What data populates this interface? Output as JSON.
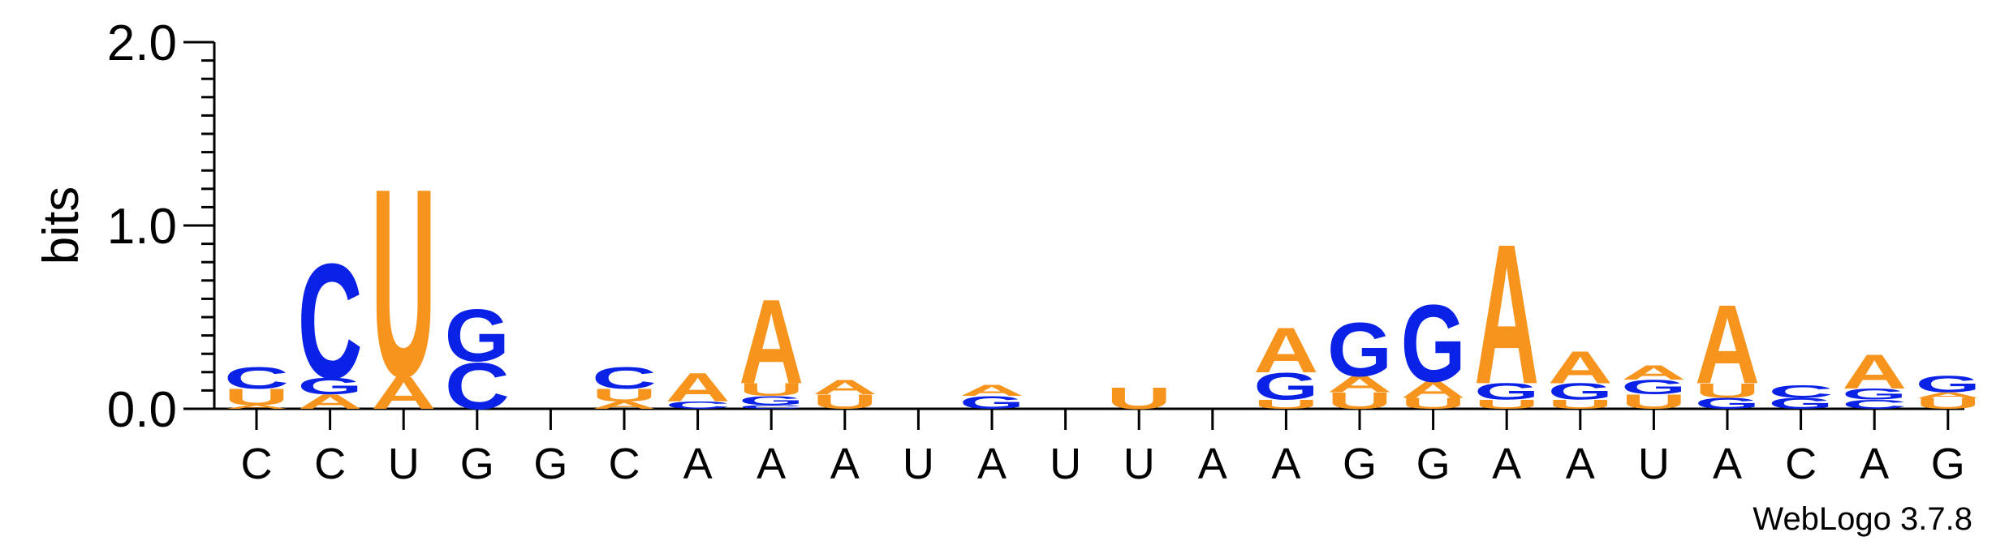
{
  "chart_data": {
    "type": "sequence-logo",
    "ylabel": "bits",
    "ylim": [
      0,
      2.0
    ],
    "yticks": [
      "0.0",
      "1.0",
      "2.0"
    ],
    "credit": "WebLogo 3.7.8",
    "colors": {
      "A": "#f7941d",
      "U": "#f7941d",
      "C": "#0a22e6",
      "G": "#0a22e6"
    },
    "positions": [
      {
        "consensus": "C",
        "stack": [
          {
            "base": "A",
            "bits": 0.02
          },
          {
            "base": "U",
            "bits": 0.09
          },
          {
            "base": "C",
            "bits": 0.12
          }
        ]
      },
      {
        "consensus": "C",
        "stack": [
          {
            "base": "A",
            "bits": 0.08
          },
          {
            "base": "G",
            "bits": 0.09
          },
          {
            "base": "C",
            "bits": 0.64
          }
        ]
      },
      {
        "consensus": "U",
        "stack": [
          {
            "base": "A",
            "bits": 0.18
          },
          {
            "base": "U",
            "bits": 1.05
          }
        ]
      },
      {
        "consensus": "G",
        "stack": [
          {
            "base": "C",
            "bits": 0.26
          },
          {
            "base": "G",
            "bits": 0.29
          }
        ]
      },
      {
        "consensus": "G",
        "stack": []
      },
      {
        "consensus": "C",
        "stack": [
          {
            "base": "A",
            "bits": 0.04
          },
          {
            "base": "U",
            "bits": 0.07
          },
          {
            "base": "C",
            "bits": 0.12
          }
        ]
      },
      {
        "consensus": "A",
        "stack": [
          {
            "base": "C",
            "bits": 0.04
          },
          {
            "base": "A",
            "bits": 0.16
          }
        ]
      },
      {
        "consensus": "A",
        "stack": [
          {
            "base": "C",
            "bits": 0.02
          },
          {
            "base": "G",
            "bits": 0.05
          },
          {
            "base": "U",
            "bits": 0.07
          },
          {
            "base": "A",
            "bits": 0.47
          }
        ]
      },
      {
        "consensus": "A",
        "stack": [
          {
            "base": "U",
            "bits": 0.08
          },
          {
            "base": "A",
            "bits": 0.08
          }
        ]
      },
      {
        "consensus": "U",
        "stack": []
      },
      {
        "consensus": "A",
        "stack": [
          {
            "base": "G",
            "bits": 0.07
          },
          {
            "base": "A",
            "bits": 0.06
          }
        ]
      },
      {
        "consensus": "U",
        "stack": []
      },
      {
        "consensus": "U",
        "stack": [
          {
            "base": "U",
            "bits": 0.12
          }
        ]
      },
      {
        "consensus": "A",
        "stack": []
      },
      {
        "consensus": "A",
        "stack": [
          {
            "base": "U",
            "bits": 0.05
          },
          {
            "base": "G",
            "bits": 0.15
          },
          {
            "base": "A",
            "bits": 0.25
          }
        ]
      },
      {
        "consensus": "G",
        "stack": [
          {
            "base": "U",
            "bits": 0.09
          },
          {
            "base": "A",
            "bits": 0.09
          },
          {
            "base": "G",
            "bits": 0.3
          }
        ]
      },
      {
        "consensus": "G",
        "stack": [
          {
            "base": "U",
            "bits": 0.06
          },
          {
            "base": "A",
            "bits": 0.09
          },
          {
            "base": "G",
            "bits": 0.43
          }
        ]
      },
      {
        "consensus": "A",
        "stack": [
          {
            "base": "U",
            "bits": 0.05
          },
          {
            "base": "G",
            "bits": 0.09
          },
          {
            "base": "A",
            "bits": 0.78
          }
        ]
      },
      {
        "consensus": "A",
        "stack": [
          {
            "base": "U",
            "bits": 0.05
          },
          {
            "base": "G",
            "bits": 0.09
          },
          {
            "base": "A",
            "bits": 0.18
          }
        ]
      },
      {
        "consensus": "U",
        "stack": [
          {
            "base": "U",
            "bits": 0.08
          },
          {
            "base": "G",
            "bits": 0.08
          },
          {
            "base": "A",
            "bits": 0.08
          }
        ]
      },
      {
        "consensus": "A",
        "stack": [
          {
            "base": "G",
            "bits": 0.06
          },
          {
            "base": "U",
            "bits": 0.08
          },
          {
            "base": "A",
            "bits": 0.44
          }
        ]
      },
      {
        "consensus": "C",
        "stack": [
          {
            "base": "G",
            "bits": 0.06
          },
          {
            "base": "C",
            "bits": 0.07
          }
        ]
      },
      {
        "consensus": "A",
        "stack": [
          {
            "base": "C",
            "bits": 0.05
          },
          {
            "base": "G",
            "bits": 0.06
          },
          {
            "base": "A",
            "bits": 0.19
          }
        ]
      },
      {
        "consensus": "G",
        "stack": [
          {
            "base": "U",
            "bits": 0.06
          },
          {
            "base": "A",
            "bits": 0.03
          },
          {
            "base": "G",
            "bits": 0.09
          }
        ]
      }
    ]
  }
}
